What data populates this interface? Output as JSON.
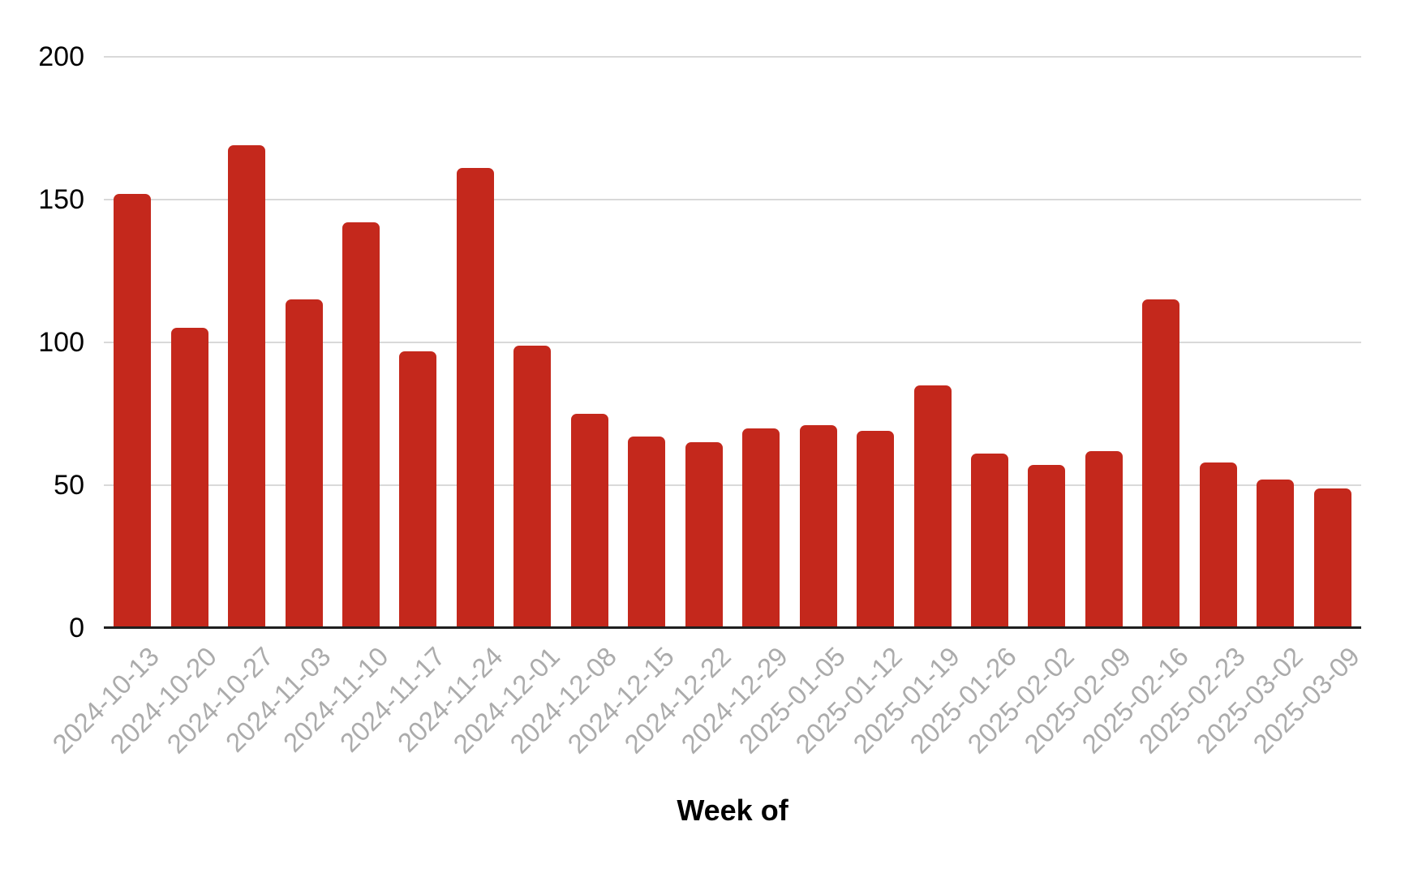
{
  "chart_data": {
    "type": "bar",
    "title": "",
    "xlabel": "Week of",
    "ylabel": "",
    "categories": [
      "2024-10-13",
      "2024-10-20",
      "2024-10-27",
      "2024-11-03",
      "2024-11-10",
      "2024-11-17",
      "2024-11-24",
      "2024-12-01",
      "2024-12-08",
      "2024-12-15",
      "2024-12-22",
      "2024-12-29",
      "2025-01-05",
      "2025-01-12",
      "2025-01-19",
      "2025-01-26",
      "2025-02-02",
      "2025-02-09",
      "2025-02-16",
      "2025-02-23",
      "2025-03-02",
      "2025-03-09"
    ],
    "values": [
      152,
      105,
      169,
      115,
      142,
      97,
      161,
      99,
      75,
      67,
      65,
      70,
      71,
      69,
      85,
      61,
      57,
      62,
      115,
      58,
      52,
      49
    ],
    "ylim": [
      0,
      200
    ],
    "yticks": [
      0,
      50,
      100,
      150,
      200
    ],
    "grid": true,
    "legend": "none",
    "colors": {
      "bar": "#c4281c",
      "gridline": "#d9d9d9",
      "baseline": "#1f1f1f",
      "y_tick_label": "#000000",
      "x_tick_label": "#ababab",
      "axis_title": "#000000",
      "background": "#ffffff"
    }
  }
}
